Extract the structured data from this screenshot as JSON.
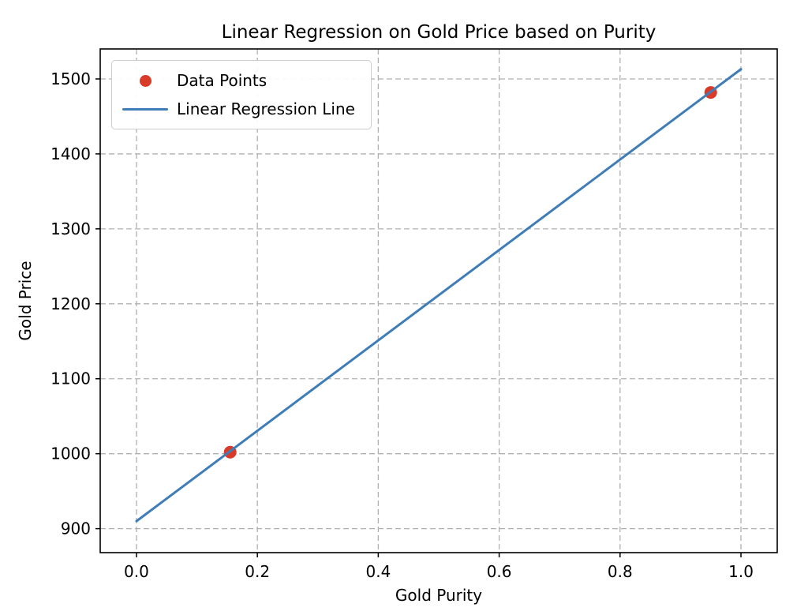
{
  "chart_data": {
    "type": "scatter",
    "title": "Linear Regression on Gold Price based on Purity",
    "xlabel": "Gold Purity",
    "ylabel": "Gold Price",
    "xlim": [
      -0.06,
      1.06
    ],
    "ylim": [
      868,
      1540
    ],
    "xticks": [
      0.0,
      0.2,
      0.4,
      0.6,
      0.8,
      1.0
    ],
    "xtick_labels": [
      "0.0",
      "0.2",
      "0.4",
      "0.6",
      "0.8",
      "1.0"
    ],
    "yticks": [
      900,
      1000,
      1100,
      1200,
      1300,
      1400,
      1500
    ],
    "ytick_labels": [
      "900",
      "1000",
      "1100",
      "1200",
      "1300",
      "1400",
      "1500"
    ],
    "grid": true,
    "grid_style": "dashed",
    "legend_position": "upper left",
    "colors": {
      "grid": "#b0b0b0",
      "spine": "#000000",
      "background": "#ffffff"
    },
    "series": [
      {
        "name": "Data Points",
        "type": "scatter",
        "color": "#da3b28",
        "points": [
          [
            0.155,
            1002
          ],
          [
            0.95,
            1482
          ]
        ]
      },
      {
        "name": "Linear Regression Line",
        "type": "line",
        "color": "#3f7db8",
        "x": [
          0.0,
          1.0
        ],
        "y": [
          910,
          1513
        ]
      }
    ]
  }
}
